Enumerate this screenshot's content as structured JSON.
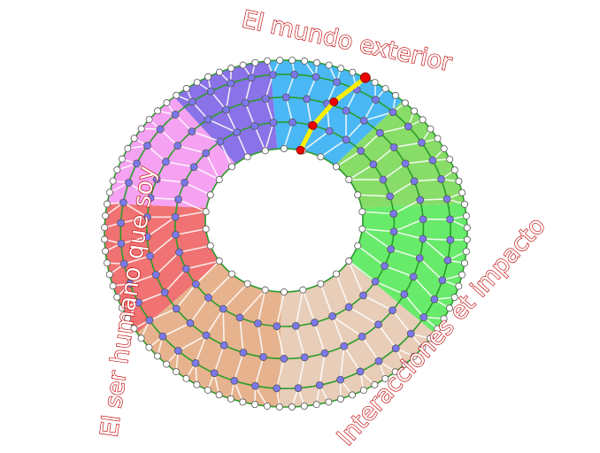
{
  "labels": {
    "top": "El mundo exterior",
    "left": "El ser humano que soy",
    "right": "Interacciones et impacto"
  },
  "colors": {
    "label_stroke": "#c00000",
    "ring_line": "#2a9d2a",
    "mesh_line": "#ffffff",
    "node_fill": "#7b78ee",
    "boundary_node_fill": "#ffffff",
    "path_color": "#ffee00",
    "path_node": "#ee0000",
    "hole_edge": "#aaaaaa"
  },
  "sectors": [
    {
      "color": "#4ab8f4"
    },
    {
      "color": "#88dc68"
    },
    {
      "color": "#68ea6a"
    },
    {
      "color": "#e8cdb8"
    },
    {
      "color": "#e6b38e"
    },
    {
      "color": "#f07272"
    },
    {
      "color": "#f5a2f2"
    },
    {
      "color": "#8a72e8"
    }
  ]
}
